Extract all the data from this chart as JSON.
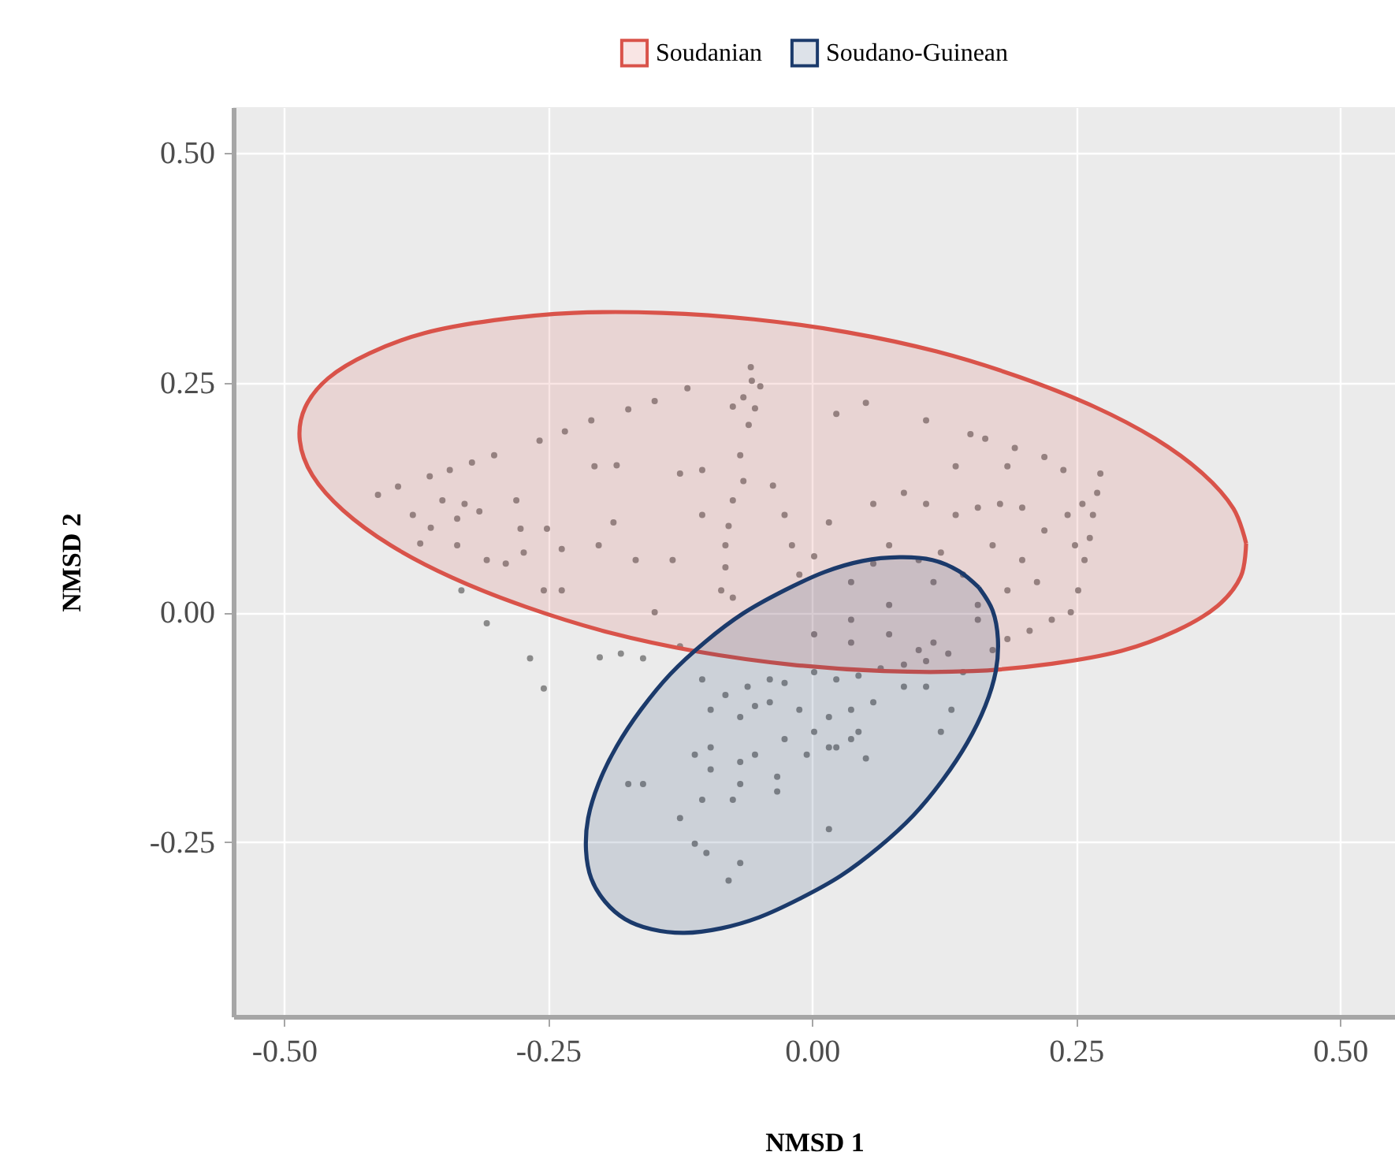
{
  "chart_data": {
    "type": "scatter",
    "xlabel": "NMSD 1",
    "ylabel": "NMSD 2",
    "xlim": [
      -0.548,
      0.552
    ],
    "ylim": [
      -0.44,
      0.55
    ],
    "xticks": [
      {
        "value": -0.5,
        "label": "-0.50"
      },
      {
        "value": -0.25,
        "label": "-0.25"
      },
      {
        "value": 0,
        "label": "0.00"
      },
      {
        "value": 0.25,
        "label": "0.25"
      },
      {
        "value": 0.5,
        "label": "0.50"
      }
    ],
    "yticks": [
      {
        "value": -0.25,
        "label": "-0.25"
      },
      {
        "value": 0,
        "label": "0.00"
      },
      {
        "value": 0.25,
        "label": "0.25"
      },
      {
        "value": 0.5,
        "label": "0.50"
      }
    ],
    "grid": true,
    "legend": "top",
    "series": [
      {
        "color": "#8a8a8a",
        "marker": "circle",
        "x": [
          -0.411,
          -0.392,
          -0.362,
          -0.343,
          -0.322,
          -0.301,
          -0.258,
          -0.234,
          -0.209,
          -0.174,
          -0.149,
          -0.118,
          -0.058,
          -0.057,
          -0.049,
          -0.075,
          -0.065,
          -0.054,
          -0.06,
          -0.068,
          -0.065,
          -0.075,
          -0.079,
          -0.082,
          -0.082,
          -0.086,
          -0.075,
          -0.35,
          -0.329,
          -0.315,
          -0.336,
          -0.378,
          -0.371,
          -0.361,
          -0.336,
          -0.308,
          -0.29,
          -0.28,
          -0.276,
          -0.251,
          -0.273,
          -0.254,
          -0.237,
          -0.237,
          -0.202,
          -0.188,
          -0.206,
          -0.185,
          -0.167,
          -0.149,
          -0.125,
          -0.104,
          -0.132,
          -0.104,
          -0.037,
          -0.026,
          -0.019,
          -0.012,
          0.002,
          0.016,
          0.023,
          0.051,
          0.108,
          0.136,
          0.15,
          0.164,
          0.192,
          0.22,
          0.185,
          0.058,
          0.087,
          0.108,
          0.136,
          0.157,
          0.178,
          0.199,
          0.073,
          0.101,
          0.122,
          0.143,
          0.171,
          0.199,
          0.22,
          0.242,
          0.249,
          0.213,
          0.185,
          0.157,
          0.115,
          0.058,
          0.037,
          0.037,
          0.073,
          0.273,
          0.27,
          0.266,
          0.263,
          0.258,
          0.252,
          0.245,
          0.227,
          0.206,
          0.185,
          0.171,
          0.238,
          0.256,
          -0.332,
          -0.308,
          -0.267,
          -0.254,
          -0.201,
          -0.181,
          -0.16,
          -0.125,
          -0.104,
          -0.082,
          -0.061,
          -0.04,
          -0.026,
          0.002,
          0.023,
          0.044,
          0.065,
          0.087,
          0.108,
          0.129,
          0.143,
          -0.096,
          -0.068,
          -0.04,
          -0.012,
          0.016,
          0.037,
          0.058,
          0.087,
          0.108,
          0.122,
          -0.026,
          0.002,
          0.023,
          0.044,
          -0.054,
          -0.096,
          -0.068,
          -0.033,
          -0.005,
          0.016,
          0.037,
          0.051,
          -0.111,
          -0.16,
          -0.174,
          -0.104,
          -0.075,
          -0.033,
          0.016,
          -0.125,
          -0.1,
          -0.111,
          -0.068,
          -0.079,
          -0.096,
          -0.068,
          -0.054,
          0.132,
          0.101,
          0.073,
          0.115,
          0.157,
          0.037,
          0.002
        ],
        "values": [
          0.128,
          0.137,
          0.148,
          0.155,
          0.163,
          0.171,
          0.187,
          0.197,
          0.209,
          0.221,
          0.23,
          0.244,
          0.267,
          0.252,
          0.246,
          0.224,
          0.234,
          0.222,
          0.204,
          0.171,
          0.143,
          0.122,
          0.094,
          0.073,
          0.049,
          0.024,
          0.016,
          0.122,
          0.118,
          0.11,
          0.102,
          0.106,
          0.075,
          0.092,
          0.073,
          0.057,
          0.053,
          0.122,
          0.091,
          0.091,
          0.065,
          0.024,
          0.024,
          0.069,
          0.073,
          0.098,
          0.159,
          0.16,
          0.057,
          0,
          0.151,
          0.155,
          0.057,
          0.106,
          0.138,
          0.106,
          0.073,
          0.041,
          0.061,
          0.098,
          0.216,
          0.228,
          0.209,
          0.159,
          0.194,
          0.189,
          0.179,
          0.169,
          0.159,
          0.118,
          0.13,
          0.118,
          0.106,
          0.114,
          0.118,
          0.114,
          0.073,
          0.057,
          0.065,
          0.041,
          0.073,
          0.057,
          0.089,
          0.106,
          0.073,
          0.033,
          0.024,
          0.008,
          0.033,
          0.053,
          0.033,
          -0.008,
          0.008,
          0.151,
          0.13,
          0.106,
          0.081,
          0.057,
          0.024,
          0,
          -0.008,
          -0.02,
          -0.029,
          -0.041,
          0.155,
          0.118,
          0.024,
          -0.012,
          -0.05,
          -0.083,
          -0.049,
          -0.045,
          -0.05,
          -0.037,
          -0.073,
          -0.09,
          -0.081,
          -0.073,
          -0.077,
          -0.065,
          -0.073,
          -0.069,
          -0.061,
          -0.057,
          -0.053,
          -0.045,
          -0.065,
          -0.106,
          -0.114,
          -0.098,
          -0.106,
          -0.114,
          -0.106,
          -0.098,
          -0.081,
          -0.081,
          -0.13,
          -0.138,
          -0.13,
          -0.147,
          -0.13,
          -0.155,
          -0.171,
          -0.163,
          -0.179,
          -0.155,
          -0.147,
          -0.138,
          -0.159,
          -0.155,
          -0.187,
          -0.187,
          -0.204,
          -0.204,
          -0.195,
          -0.236,
          -0.224,
          -0.262,
          -0.252,
          -0.273,
          -0.292,
          -0.147,
          -0.187,
          -0.102,
          -0.106,
          -0.041,
          -0.024,
          -0.033,
          -0.008,
          -0.033,
          -0.024
        ]
      },
      {
        "name": "Soudanian",
        "type": "area",
        "color": "#d9534a",
        "line_style": "solid",
        "x": [
          0.411,
          0.399,
          0.37,
          0.325,
          0.267,
          0.197,
          0.118,
          0.033,
          -0.055,
          -0.142,
          -0.226,
          -0.301,
          -0.367,
          -0.419,
          -0.458,
          -0.48,
          -0.485,
          -0.473,
          -0.444,
          -0.399,
          -0.341,
          -0.271,
          -0.192,
          -0.107,
          -0.019,
          0.068,
          0.152,
          0.227,
          0.293,
          0.345,
          0.384,
          0.406,
          0.411
        ],
        "values": [
          0.075,
          0.113,
          0.151,
          0.189,
          0.224,
          0.256,
          0.284,
          0.305,
          0.319,
          0.326,
          0.326,
          0.318,
          0.304,
          0.282,
          0.255,
          0.223,
          0.187,
          0.149,
          0.111,
          0.073,
          0.038,
          0.006,
          -0.022,
          -0.043,
          -0.057,
          -0.064,
          -0.064,
          -0.056,
          -0.042,
          -0.02,
          0.007,
          0.039,
          0.075
        ]
      },
      {
        "name": "Soudano-Guinean",
        "type": "area",
        "color": "#1b3a6b",
        "line_style": "solid",
        "x": [
          0.158,
          0.139,
          0.114,
          0.083,
          0.048,
          0.012,
          -0.026,
          -0.065,
          -0.101,
          -0.134,
          -0.162,
          -0.185,
          -0.202,
          -0.212,
          -0.214,
          -0.209,
          -0.196,
          -0.177,
          -0.152,
          -0.121,
          -0.086,
          -0.05,
          -0.012,
          0.027,
          0.063,
          0.096,
          0.124,
          0.147,
          0.164,
          0.174,
          0.176,
          0.171,
          0.158
        ],
        "values": [
          0.027,
          0.045,
          0.057,
          0.06,
          0.056,
          0.044,
          0.024,
          -0.001,
          -0.032,
          -0.067,
          -0.106,
          -0.146,
          -0.186,
          -0.224,
          -0.259,
          -0.29,
          -0.315,
          -0.334,
          -0.345,
          -0.349,
          -0.344,
          -0.332,
          -0.312,
          -0.287,
          -0.256,
          -0.221,
          -0.182,
          -0.142,
          -0.102,
          -0.064,
          -0.029,
          0.002,
          0.027
        ]
      }
    ]
  }
}
